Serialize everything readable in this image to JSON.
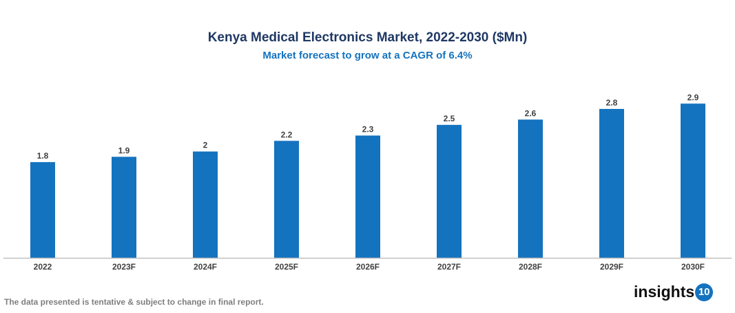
{
  "chart_data": {
    "type": "bar",
    "title": "Kenya Medical Electronics Market, 2022-2030 ($Mn)",
    "subtitle": "Market forecast to grow at a CAGR of 6.4%",
    "categories": [
      "2022",
      "2023F",
      "2024F",
      "2025F",
      "2026F",
      "2027F",
      "2028F",
      "2029F",
      "2030F"
    ],
    "values": [
      1.8,
      1.9,
      2,
      2.2,
      2.3,
      2.5,
      2.6,
      2.8,
      2.9
    ],
    "data_labels": [
      "1.8",
      "1.9",
      "2",
      "2.2",
      "2.3",
      "2.5",
      "2.6",
      "2.8",
      "2.9"
    ],
    "xlabel": "",
    "ylabel": "",
    "ylim": [
      0,
      3.5
    ],
    "grid": false,
    "bar_color": "#1473bf"
  },
  "footer": {
    "note": "The data presented is tentative & subject to change in final report.",
    "logo_text": "insights",
    "logo_badge": "10"
  }
}
